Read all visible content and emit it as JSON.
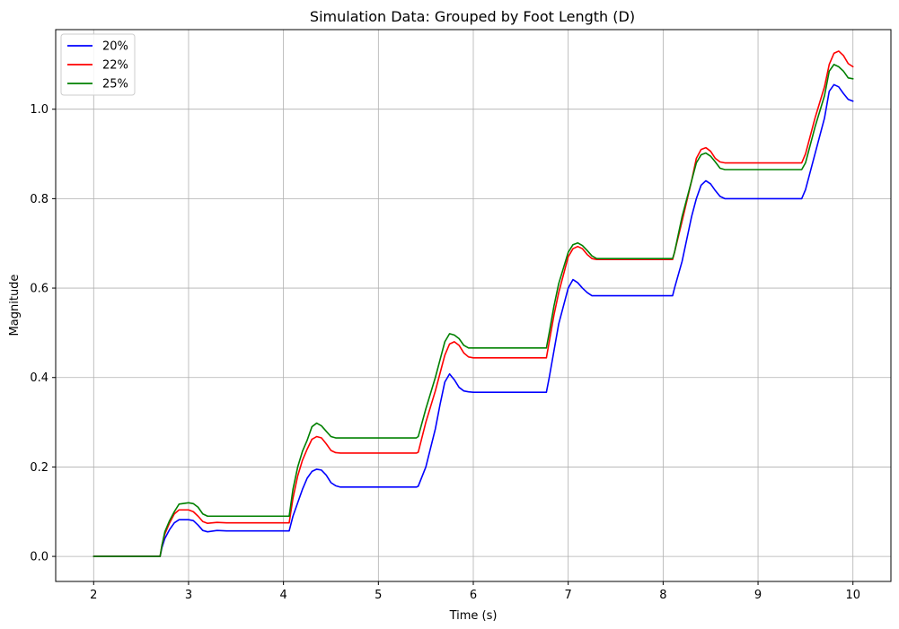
{
  "chart_data": {
    "type": "line",
    "title": "Simulation Data: Grouped by Foot Length (D)",
    "xlabel": "Time (s)",
    "ylabel": "Magnitude",
    "xlim": [
      1.6,
      10.4
    ],
    "ylim": [
      -0.056,
      1.178
    ],
    "xticks": [
      2,
      3,
      4,
      5,
      6,
      7,
      8,
      9,
      10
    ],
    "xtick_labels": [
      "2",
      "3",
      "4",
      "5",
      "6",
      "7",
      "8",
      "9",
      "10"
    ],
    "yticks": [
      0.0,
      0.2,
      0.4,
      0.6,
      0.8,
      1.0
    ],
    "ytick_labels": [
      "0.0",
      "0.2",
      "0.4",
      "0.6",
      "0.8",
      "1.0"
    ],
    "grid": true,
    "legend_position": "top-left",
    "series": [
      {
        "name": "20%",
        "color": "#0000ff",
        "x": [
          2.0,
          2.7,
          2.72,
          2.75,
          2.8,
          2.85,
          2.9,
          3.0,
          3.05,
          3.1,
          3.15,
          3.2,
          3.3,
          3.4,
          3.6,
          4.06,
          4.1,
          4.15,
          4.2,
          4.25,
          4.3,
          4.35,
          4.4,
          4.45,
          4.5,
          4.55,
          4.6,
          5.4,
          5.42,
          5.5,
          5.6,
          5.65,
          5.7,
          5.75,
          5.8,
          5.85,
          5.9,
          5.95,
          6.0,
          6.77,
          6.8,
          6.85,
          6.9,
          7.0,
          7.05,
          7.1,
          7.15,
          7.2,
          7.25,
          7.3,
          8.1,
          8.12,
          8.2,
          8.3,
          8.35,
          8.4,
          8.45,
          8.5,
          8.55,
          8.6,
          8.65,
          8.7,
          9.46,
          9.5,
          9.6,
          9.7,
          9.75,
          9.8,
          9.85,
          9.9,
          9.95,
          10.0
        ],
        "y": [
          0.0,
          0.0,
          0.02,
          0.04,
          0.06,
          0.075,
          0.082,
          0.082,
          0.08,
          0.07,
          0.058,
          0.055,
          0.058,
          0.057,
          0.057,
          0.057,
          0.09,
          0.12,
          0.15,
          0.175,
          0.19,
          0.195,
          0.193,
          0.182,
          0.165,
          0.158,
          0.155,
          0.155,
          0.157,
          0.2,
          0.285,
          0.34,
          0.39,
          0.408,
          0.395,
          0.378,
          0.37,
          0.368,
          0.367,
          0.367,
          0.4,
          0.46,
          0.52,
          0.6,
          0.619,
          0.612,
          0.6,
          0.59,
          0.583,
          0.583,
          0.583,
          0.6,
          0.66,
          0.76,
          0.8,
          0.83,
          0.84,
          0.833,
          0.818,
          0.805,
          0.8,
          0.8,
          0.8,
          0.82,
          0.9,
          0.98,
          1.04,
          1.055,
          1.05,
          1.035,
          1.022,
          1.018
        ]
      },
      {
        "name": "22%",
        "color": "#ff0000",
        "x": [
          2.0,
          2.7,
          2.72,
          2.75,
          2.8,
          2.85,
          2.9,
          3.0,
          3.05,
          3.1,
          3.15,
          3.2,
          3.3,
          3.4,
          3.6,
          4.06,
          4.1,
          4.15,
          4.2,
          4.25,
          4.3,
          4.35,
          4.4,
          4.45,
          4.5,
          4.55,
          4.6,
          5.4,
          5.42,
          5.5,
          5.6,
          5.65,
          5.7,
          5.75,
          5.8,
          5.85,
          5.9,
          5.95,
          6.0,
          6.77,
          6.8,
          6.85,
          6.9,
          7.0,
          7.05,
          7.1,
          7.15,
          7.2,
          7.25,
          7.3,
          8.1,
          8.12,
          8.2,
          8.3,
          8.35,
          8.4,
          8.45,
          8.5,
          8.55,
          8.6,
          8.65,
          8.7,
          9.46,
          9.5,
          9.6,
          9.7,
          9.75,
          9.8,
          9.85,
          9.9,
          9.95,
          10.0
        ],
        "y": [
          0.0,
          0.0,
          0.025,
          0.05,
          0.075,
          0.095,
          0.104,
          0.104,
          0.1,
          0.09,
          0.078,
          0.074,
          0.076,
          0.075,
          0.075,
          0.075,
          0.13,
          0.18,
          0.215,
          0.24,
          0.262,
          0.268,
          0.265,
          0.252,
          0.237,
          0.232,
          0.231,
          0.231,
          0.233,
          0.3,
          0.37,
          0.41,
          0.45,
          0.475,
          0.48,
          0.472,
          0.455,
          0.446,
          0.444,
          0.444,
          0.48,
          0.54,
          0.59,
          0.67,
          0.688,
          0.693,
          0.688,
          0.675,
          0.666,
          0.664,
          0.664,
          0.68,
          0.75,
          0.84,
          0.89,
          0.91,
          0.914,
          0.906,
          0.89,
          0.882,
          0.88,
          0.88,
          0.88,
          0.9,
          0.98,
          1.05,
          1.1,
          1.125,
          1.13,
          1.12,
          1.102,
          1.095
        ]
      },
      {
        "name": "25%",
        "color": "#008000",
        "x": [
          2.0,
          2.7,
          2.72,
          2.75,
          2.8,
          2.85,
          2.9,
          3.0,
          3.05,
          3.1,
          3.15,
          3.2,
          3.3,
          3.4,
          3.6,
          4.06,
          4.1,
          4.15,
          4.2,
          4.25,
          4.3,
          4.35,
          4.4,
          4.45,
          4.5,
          4.55,
          4.6,
          5.4,
          5.42,
          5.5,
          5.6,
          5.65,
          5.7,
          5.75,
          5.8,
          5.85,
          5.9,
          5.95,
          6.0,
          6.77,
          6.8,
          6.85,
          6.9,
          7.0,
          7.05,
          7.1,
          7.15,
          7.2,
          7.25,
          7.3,
          8.1,
          8.12,
          8.2,
          8.3,
          8.35,
          8.4,
          8.45,
          8.5,
          8.55,
          8.6,
          8.65,
          8.7,
          9.46,
          9.5,
          9.6,
          9.7,
          9.75,
          9.8,
          9.85,
          9.9,
          9.95,
          10.0
        ],
        "y": [
          0.0,
          0.0,
          0.025,
          0.055,
          0.08,
          0.1,
          0.117,
          0.12,
          0.118,
          0.11,
          0.095,
          0.09,
          0.09,
          0.09,
          0.09,
          0.09,
          0.15,
          0.2,
          0.235,
          0.26,
          0.29,
          0.298,
          0.292,
          0.28,
          0.268,
          0.265,
          0.265,
          0.265,
          0.268,
          0.33,
          0.4,
          0.44,
          0.48,
          0.498,
          0.495,
          0.487,
          0.472,
          0.466,
          0.466,
          0.466,
          0.5,
          0.56,
          0.61,
          0.68,
          0.697,
          0.701,
          0.695,
          0.684,
          0.672,
          0.666,
          0.666,
          0.68,
          0.76,
          0.84,
          0.88,
          0.898,
          0.902,
          0.895,
          0.882,
          0.868,
          0.865,
          0.865,
          0.865,
          0.88,
          0.96,
          1.03,
          1.085,
          1.1,
          1.095,
          1.085,
          1.07,
          1.068
        ]
      }
    ]
  }
}
